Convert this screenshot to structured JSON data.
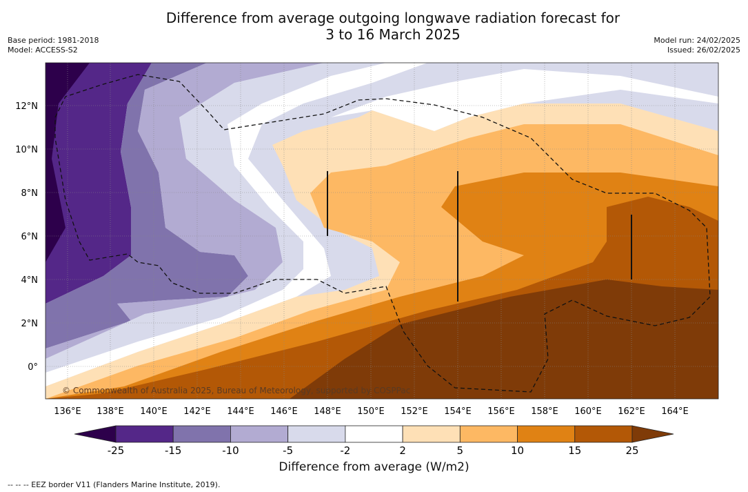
{
  "title_line1": "Difference from average outgoing longwave radiation forecast for",
  "title_line2": "3 to 16 March 2025",
  "base_period": "Base period: 1981-2018",
  "model": "Model: ACCESS-S2",
  "model_run": "Model run: 24/02/2025",
  "issued": "Issued: 26/02/2025",
  "lat_labels": [
    "12°N",
    "10°N",
    "8°N",
    "6°N",
    "4°N",
    "2°N",
    "0°"
  ],
  "lon_labels": [
    "136°E",
    "138°E",
    "140°E",
    "142°E",
    "144°E",
    "146°E",
    "148°E",
    "150°E",
    "152°E",
    "154°E",
    "156°E",
    "158°E",
    "160°E",
    "162°E",
    "164°E"
  ],
  "copyright": "© Commonwealth of Australia 2025, Bureau of Meteorology, supported by COSPPac",
  "colorbar": {
    "ticks": [
      "-25",
      "-15",
      "-10",
      "-5",
      "-2",
      "2",
      "5",
      "10",
      "15",
      "25"
    ],
    "colors": [
      "#2d004b",
      "#542788",
      "#8073ac",
      "#b2abd2",
      "#d8daeb",
      "#ffffff",
      "#fee0b6",
      "#fdb863",
      "#e08214",
      "#b35806",
      "#7f3b08"
    ],
    "title": "Difference from average (W/m2)"
  },
  "footnote": "--  --  -- EEZ border V11 (Flanders Marine Institute, 2019)."
}
